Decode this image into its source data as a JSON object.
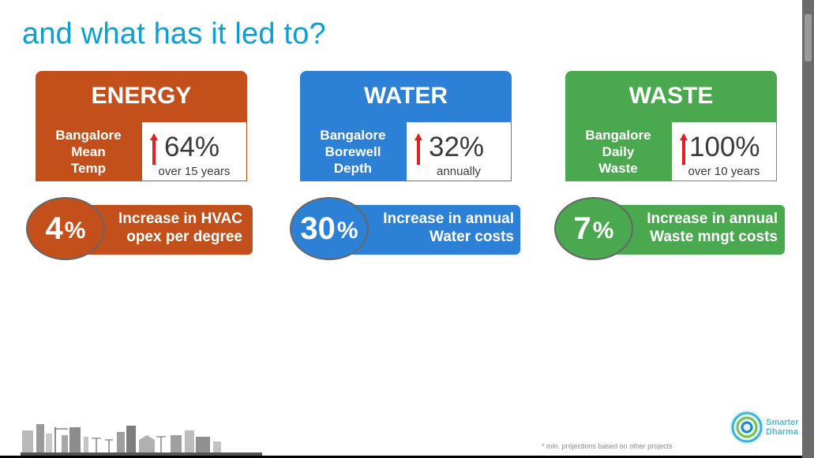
{
  "slide": {
    "title": "and what has it led to?",
    "footnote": "* min. projections based on other projects",
    "logo": {
      "line1": "Smarter",
      "line2": "Dharma"
    }
  },
  "colors": {
    "energy": "#c3501a",
    "water": "#2c80d6",
    "waste": "#4aa84e",
    "title": "#0aa0d6",
    "arrow": "#e02020"
  },
  "cards": [
    {
      "heading": "ENERGY",
      "metric_line1": "Bangalore",
      "metric_line2": "Mean",
      "metric_line3": "Temp",
      "value": "64%",
      "period": "over 15 years",
      "arrow_icon": "up-arrow-icon",
      "impact_number": "4",
      "impact_symbol": "%",
      "impact_line1": "Increase in HVAC",
      "impact_line2": "opex per degree"
    },
    {
      "heading": "WATER",
      "metric_line1": "Bangalore",
      "metric_line2": "Borewell",
      "metric_line3": "Depth",
      "value": "32%",
      "period": "annually",
      "arrow_icon": "up-arrow-icon",
      "impact_number": "30",
      "impact_symbol": "%",
      "impact_line1": "Increase in annual",
      "impact_line2": "Water costs"
    },
    {
      "heading": "WASTE",
      "metric_line1": "Bangalore",
      "metric_line2": "Daily",
      "metric_line3": "Waste",
      "value": "100%",
      "period": "over 10 years",
      "arrow_icon": "up-arrow-icon",
      "impact_number": "7",
      "impact_symbol": "%",
      "impact_line1": "Increase in annual",
      "impact_line2": "Waste mngt costs"
    }
  ]
}
